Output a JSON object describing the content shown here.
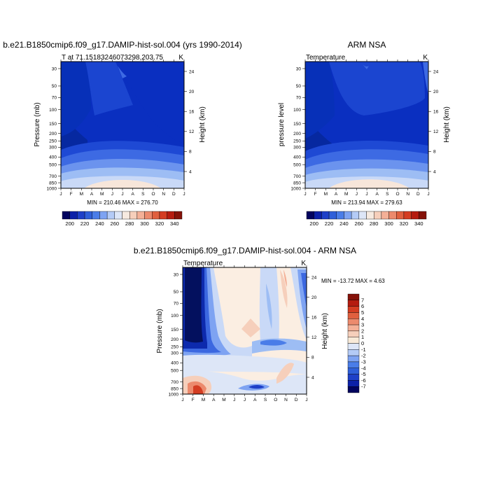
{
  "chart_data": [
    {
      "type": "heatmap",
      "title": "b.e21.B1850cmip6.f09_g17.DAMIP-hist-sol.004 (yrs 1990-2014)",
      "left_label": "T at 71.15183246073298,203.75",
      "right_label": "K",
      "ylabel": "Pressure (mb)",
      "ylabel_right": "Height (km)",
      "x": [
        "J",
        "F",
        "M",
        "A",
        "M",
        "J",
        "J",
        "A",
        "S",
        "O",
        "N",
        "D",
        "J"
      ],
      "y": [
        "30",
        "50",
        "70",
        "100",
        "150",
        "200",
        "250",
        "300",
        "400",
        "500",
        "700",
        "850",
        "1000"
      ],
      "height_ticks": [
        "24",
        "20",
        "16",
        "12",
        "8",
        "4"
      ],
      "info": "MIN = 210.46 MAX = 276.70",
      "min": 210.46,
      "max": 276.7
    },
    {
      "type": "heatmap",
      "title": "ARM NSA",
      "left_label": "Temperature",
      "right_label": "K",
      "ylabel": "pressure level",
      "ylabel_right": "Height (km)",
      "x": [
        "J",
        "F",
        "M",
        "A",
        "M",
        "J",
        "J",
        "A",
        "S",
        "O",
        "N",
        "D",
        "J"
      ],
      "y": [
        "30",
        "50",
        "70",
        "100",
        "150",
        "200",
        "250",
        "300",
        "400",
        "500",
        "700",
        "850",
        "1000"
      ],
      "height_ticks": [
        "24",
        "20",
        "16",
        "12",
        "8",
        "4"
      ],
      "info": "MIN = 213.94 MAX = 279.63",
      "min": 213.94,
      "max": 279.63
    },
    {
      "type": "heatmap",
      "title": "b.e21.B1850cmip6.f09_g17.DAMIP-hist-sol.004 - ARM NSA",
      "left_label": "Temperature",
      "right_label": "K",
      "ylabel": "Pressure (mb)",
      "ylabel_right": "Height (km)",
      "x": [
        "J",
        "F",
        "M",
        "A",
        "M",
        "J",
        "J",
        "A",
        "S",
        "O",
        "N",
        "D",
        "J"
      ],
      "y": [
        "30",
        "50",
        "70",
        "100",
        "150",
        "200",
        "250",
        "300",
        "400",
        "500",
        "700",
        "850",
        "1000"
      ],
      "height_ticks": [
        "24",
        "20",
        "16",
        "12",
        "8",
        "4"
      ],
      "info": "MIN = -13.72 MAX =   4.63",
      "min": -13.72,
      "max": 4.63
    }
  ],
  "colorbar_top": {
    "labels": [
      "200",
      "220",
      "240",
      "260",
      "280",
      "300",
      "320",
      "340"
    ],
    "colors": [
      "#02045e",
      "#0c21a8",
      "#1e40c8",
      "#2f5fd9",
      "#4a7de8",
      "#7ea3f2",
      "#b4cbf6",
      "#dde6f7",
      "#f6eae0",
      "#f6cfbb",
      "#f4b097",
      "#ec8a6d",
      "#e0603f",
      "#d43d22",
      "#b51c10",
      "#851209"
    ]
  },
  "colorbar_bottom": {
    "labels": [
      "7",
      "6",
      "5",
      "4",
      "3",
      "2",
      "1",
      "0",
      "-1",
      "-2",
      "-3",
      "-4",
      "-5",
      "-6",
      "-7"
    ],
    "colors": [
      "#851209",
      "#b51c10",
      "#d43d22",
      "#e0603f",
      "#ec8a6d",
      "#f4b097",
      "#f6cfbb",
      "#f8ead8",
      "#dde6f7",
      "#b4cbf6",
      "#7ea3f2",
      "#4a7de8",
      "#2f5fd9",
      "#1e40c8",
      "#0c21a8",
      "#02045e"
    ]
  }
}
